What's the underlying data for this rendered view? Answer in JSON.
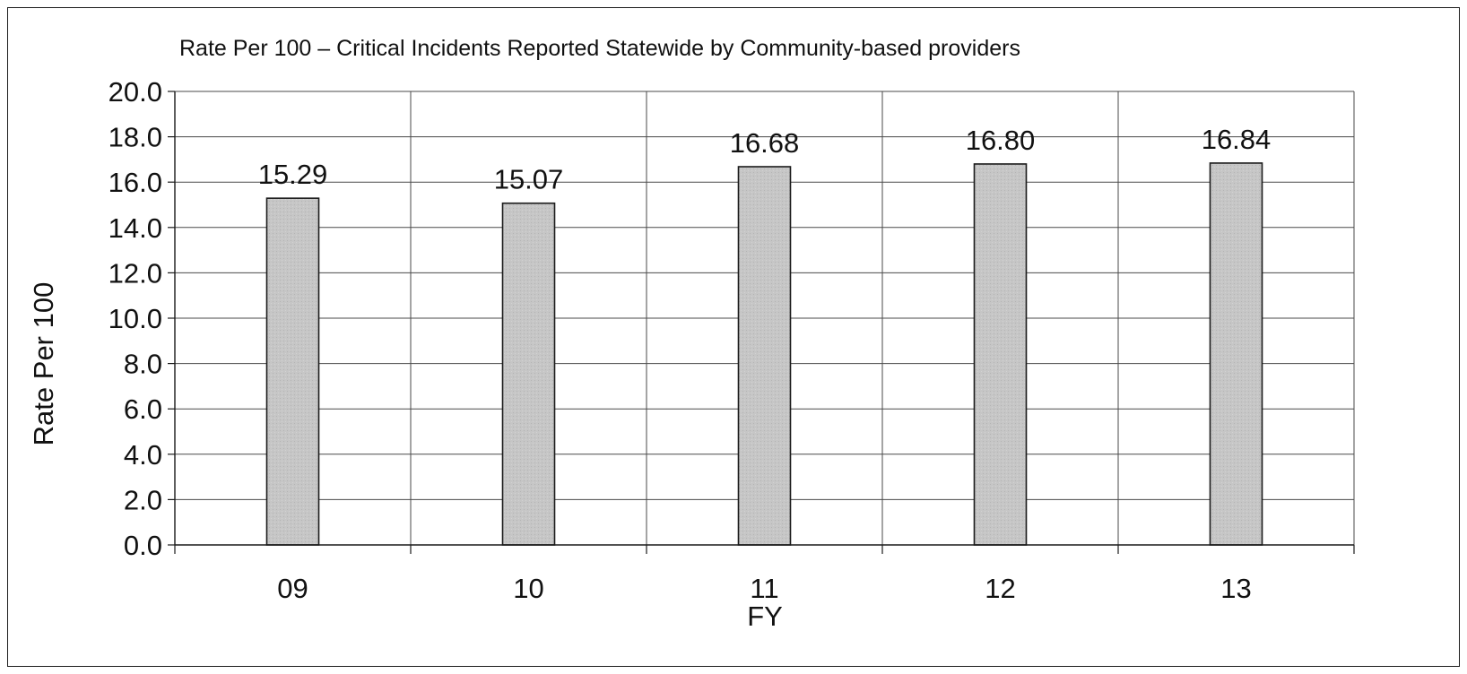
{
  "chart_data": {
    "type": "bar",
    "title": "Rate Per 100 – Critical Incidents Reported Statewide by Community-based providers",
    "xlabel": "FY",
    "ylabel": "Rate Per 100",
    "categories": [
      "09",
      "10",
      "11",
      "12",
      "13"
    ],
    "values": [
      15.29,
      15.07,
      16.68,
      16.8,
      16.84
    ],
    "data_labels": [
      "15.29",
      "15.07",
      "16.68",
      "16.80",
      "16.84"
    ],
    "ylim": [
      0,
      20
    ],
    "yticks": [
      "0.0",
      "2.0",
      "4.0",
      "6.0",
      "8.0",
      "10.0",
      "12.0",
      "14.0",
      "16.0",
      "18.0",
      "20.0"
    ],
    "grid": true,
    "legend": "none",
    "bar_color": "#c4c4c4",
    "bar_edge_color": "#1a1a1a"
  }
}
